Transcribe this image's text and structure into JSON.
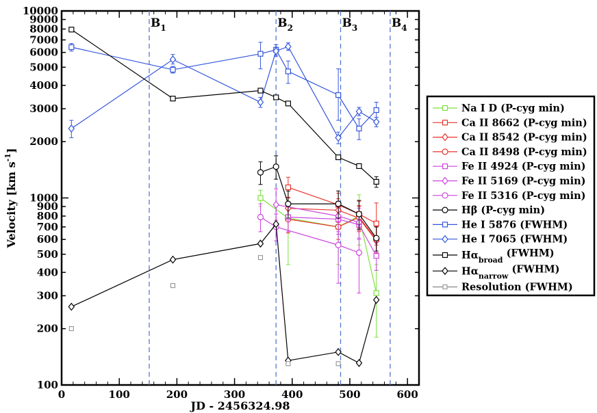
{
  "chart_data": {
    "type": "scatter",
    "xlabel": "JD - 2456324.98",
    "ylabel": "Velocity [km s",
    "ylabel_sup": "-1",
    "ylabel_tail": "]",
    "xlim": [
      0,
      620
    ],
    "ylim": [
      100,
      10000
    ],
    "yscale": "log",
    "x_ticks": [
      0,
      100,
      200,
      300,
      400,
      500,
      600
    ],
    "x_tick_labels": [
      "0",
      "100",
      "200",
      "300",
      "400",
      "500",
      "600"
    ],
    "y_major_ticks": [
      100,
      1000,
      10000
    ],
    "y_tick_labels": [
      {
        "v": 100,
        "t": "100"
      },
      {
        "v": 200,
        "t": "200"
      },
      {
        "v": 300,
        "t": "300"
      },
      {
        "v": 400,
        "t": "400"
      },
      {
        "v": 500,
        "t": "500"
      },
      {
        "v": 600,
        "t": "600"
      },
      {
        "v": 700,
        "t": "700"
      },
      {
        "v": 800,
        "t": "800"
      },
      {
        "v": 900,
        "t": "900"
      },
      {
        "v": 1000,
        "t": "1000"
      },
      {
        "v": 2000,
        "t": "2000"
      },
      {
        "v": 3000,
        "t": "3000"
      },
      {
        "v": 4000,
        "t": "4000"
      },
      {
        "v": 5000,
        "t": "5000"
      },
      {
        "v": 6000,
        "t": "6000"
      },
      {
        "v": 7000,
        "t": "7000"
      },
      {
        "v": 8000,
        "t": "8000"
      },
      {
        "v": 9000,
        "t": "9000"
      },
      {
        "v": 10000,
        "t": "10000"
      }
    ],
    "bands": [
      {
        "x": 152,
        "label": "B",
        "sub": "1"
      },
      {
        "x": 372,
        "label": "B",
        "sub": "2"
      },
      {
        "x": 484,
        "label": "B",
        "sub": "3"
      },
      {
        "x": 570,
        "label": "B",
        "sub": "4"
      }
    ],
    "series": [
      {
        "name": "Na I D (P-cyg min)",
        "label_main": "Na I D (P-cyg min)",
        "color": "#7fdf3f",
        "marker": "square",
        "connect": true,
        "points": [
          [
            345,
            1000,
            900,
            1100
          ],
          [
            393,
            780,
            440,
            1120
          ],
          [
            480,
            700,
            440,
            960
          ],
          [
            516,
            800,
            560,
            1040
          ],
          [
            546,
            310,
            180,
            440
          ]
        ]
      },
      {
        "name": "Ca II 8662 (P-cyg min)",
        "label_main": "Ca II 8662 (P-cyg min)",
        "color": "#e8322a",
        "marker": "square",
        "connect": true,
        "points": [
          [
            393,
            1140,
            1000,
            1290
          ],
          [
            480,
            920,
            780,
            1060
          ],
          [
            516,
            820,
            690,
            960
          ],
          [
            546,
            730,
            560,
            940
          ]
        ]
      },
      {
        "name": "Ca II 8542 (P-cyg min)",
        "label_main": "Ca II 8542 (P-cyg min)",
        "color": "#e8322a",
        "marker": "diamond",
        "connect": true,
        "points": [
          [
            393,
            880,
            760,
            1010
          ],
          [
            480,
            860,
            740,
            990
          ],
          [
            516,
            780,
            660,
            900
          ],
          [
            546,
            590,
            500,
            700
          ]
        ]
      },
      {
        "name": "Ca II 8498 (P-cyg min)",
        "label_main": "Ca II 8498 (P-cyg min)",
        "color": "#e8322a",
        "marker": "circle",
        "connect": true,
        "points": [
          [
            393,
            770,
            650,
            900
          ],
          [
            480,
            700,
            600,
            820
          ],
          [
            516,
            790,
            670,
            910
          ],
          [
            546,
            600,
            510,
            700
          ]
        ]
      },
      {
        "name": "Fe II 4924 (P-cyg min)",
        "label_main": "Fe II 4924 (P-cyg min)",
        "color": "#cc44dd",
        "marker": "square",
        "connect": true,
        "points": [
          [
            393,
            790,
            660,
            930
          ],
          [
            480,
            770,
            640,
            900
          ],
          [
            516,
            720,
            600,
            840
          ],
          [
            546,
            490,
            410,
            580
          ]
        ]
      },
      {
        "name": "Fe II 5169 (P-cyg min)",
        "label_main": "Fe II 5169 (P-cyg min)",
        "color": "#cc44dd",
        "marker": "diamond",
        "connect": true,
        "points": [
          [
            372,
            920,
            760,
            1120
          ],
          [
            480,
            800,
            660,
            960
          ],
          [
            516,
            740,
            610,
            880
          ]
        ]
      },
      {
        "name": "Fe II 5316 (P-cyg min)",
        "label_main": "Fe II 5316 (P-cyg min)",
        "color": "#cc44dd",
        "marker": "circle",
        "connect": true,
        "points": [
          [
            345,
            790,
            660,
            930
          ],
          [
            372,
            700,
            590,
            820
          ],
          [
            480,
            560,
            350,
            780
          ],
          [
            516,
            510,
            310,
            720
          ]
        ]
      },
      {
        "name": "Hβ (P-cyg min)",
        "label_main": "Hβ (P-cyg min)",
        "color": "#000000",
        "marker": "circle",
        "connect": true,
        "points": [
          [
            345,
            1370,
            1180,
            1560
          ],
          [
            372,
            1470,
            1260,
            1680
          ],
          [
            393,
            930,
            780,
            1090
          ],
          [
            480,
            930,
            780,
            1090
          ],
          [
            516,
            820,
            680,
            970
          ],
          [
            546,
            610,
            520,
            700
          ]
        ]
      },
      {
        "name": "He I 5876 (FWHM)",
        "label_main": "He I 5876 (FWHM)",
        "color": "#3355dd",
        "marker": "square",
        "connect": true,
        "points": [
          [
            17,
            6400,
            6100,
            6700
          ],
          [
            193,
            4850,
            4650,
            5050
          ],
          [
            345,
            5900,
            4900,
            6800
          ],
          [
            372,
            6200,
            5700,
            6600
          ],
          [
            393,
            4750,
            4100,
            5400
          ],
          [
            480,
            3550,
            2600,
            4900
          ],
          [
            516,
            2350,
            2050,
            2650
          ],
          [
            546,
            2950,
            2700,
            3250
          ]
        ]
      },
      {
        "name": "He I 7065 (FWHM)",
        "label_main": "He I 7065 (FWHM)",
        "color": "#3355dd",
        "marker": "diamond",
        "connect": true,
        "points": [
          [
            17,
            2350,
            2100,
            2600
          ],
          [
            193,
            5500,
            5200,
            5850
          ],
          [
            345,
            3250,
            3050,
            3450
          ],
          [
            372,
            6100,
            5800,
            6400
          ],
          [
            393,
            6450,
            6150,
            6750
          ],
          [
            480,
            2100,
            1950,
            2250
          ],
          [
            516,
            2900,
            2750,
            3050
          ],
          [
            546,
            2550,
            2400,
            2700
          ]
        ]
      },
      {
        "name": "Hα broad (FWHM)",
        "label_main": "Hα",
        "label_sub": "broad",
        "label_tail": " (FWHM)",
        "color": "#000000",
        "marker": "square",
        "connect": true,
        "points": [
          [
            17,
            7950,
            7950,
            7950
          ],
          [
            193,
            3400,
            3400,
            3400
          ],
          [
            345,
            3750,
            3750,
            3750
          ],
          [
            372,
            3450,
            3450,
            3450
          ],
          [
            393,
            3200,
            3200,
            3200
          ],
          [
            480,
            1650,
            1650,
            1650
          ],
          [
            516,
            1480,
            1480,
            1480
          ],
          [
            546,
            1220,
            1140,
            1300
          ]
        ]
      },
      {
        "name": "Hα narrow (FWHM)",
        "label_main": "Hα",
        "label_sub": "narrow",
        "label_tail": " (FWHM)",
        "color": "#000000",
        "marker": "diamond",
        "connect": true,
        "points": [
          [
            17,
            262,
            262,
            262
          ],
          [
            193,
            468,
            468,
            468
          ],
          [
            345,
            570,
            570,
            570
          ],
          [
            372,
            725,
            725,
            725
          ],
          [
            393,
            135,
            135,
            135
          ],
          [
            480,
            150,
            150,
            150
          ],
          [
            516,
            131,
            131,
            131
          ],
          [
            546,
            285,
            285,
            285
          ]
        ]
      },
      {
        "name": "Resolution (FWHM)",
        "label_main": "Resolution (FWHM)",
        "color": "#888888",
        "marker": "smallsquare",
        "connect": false,
        "points": [
          [
            17,
            200,
            200,
            200
          ],
          [
            193,
            340,
            340,
            340
          ],
          [
            345,
            480,
            480,
            480
          ],
          [
            393,
            130,
            130,
            130
          ],
          [
            480,
            130,
            130,
            130
          ]
        ]
      }
    ]
  }
}
